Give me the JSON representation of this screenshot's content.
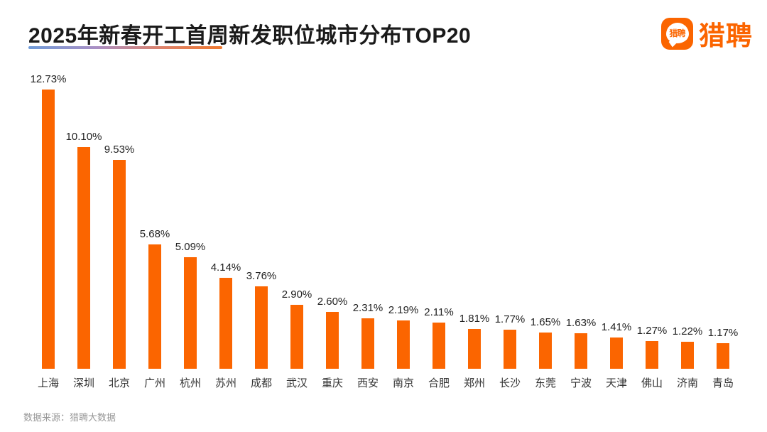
{
  "header": {
    "title": "2025年新春开工首周新发职位城市分布TOP20"
  },
  "logo": {
    "bubble_text": "猎聘",
    "wordmark": "猎聘",
    "brand_color": "#fb6500"
  },
  "chart_data": {
    "type": "bar",
    "title": "2025年新春开工首周新发职位城市分布TOP20",
    "categories": [
      "上海",
      "深圳",
      "北京",
      "广州",
      "杭州",
      "苏州",
      "成都",
      "武汉",
      "重庆",
      "西安",
      "南京",
      "合肥",
      "郑州",
      "长沙",
      "东莞",
      "宁波",
      "天津",
      "佛山",
      "济南",
      "青岛"
    ],
    "values": [
      12.73,
      10.1,
      9.53,
      5.68,
      5.09,
      4.14,
      3.76,
      2.9,
      2.6,
      2.31,
      2.19,
      2.11,
      1.81,
      1.77,
      1.65,
      1.63,
      1.41,
      1.27,
      1.22,
      1.17
    ],
    "value_labels": [
      "12.73%",
      "10.10%",
      "9.53%",
      "5.68%",
      "5.09%",
      "4.14%",
      "3.76%",
      "2.90%",
      "2.60%",
      "2.31%",
      "2.19%",
      "2.11%",
      "1.81%",
      "1.77%",
      "1.65%",
      "1.63%",
      "1.41%",
      "1.27%",
      "1.22%",
      "1.17%"
    ],
    "value_suffix": "%",
    "bar_color": "#fb6500",
    "xlabel": "",
    "ylabel": "",
    "ylim": [
      0,
      12.73
    ],
    "grid": false,
    "legend_position": "none"
  },
  "footer": {
    "source": "数据来源：猎聘大数据"
  }
}
